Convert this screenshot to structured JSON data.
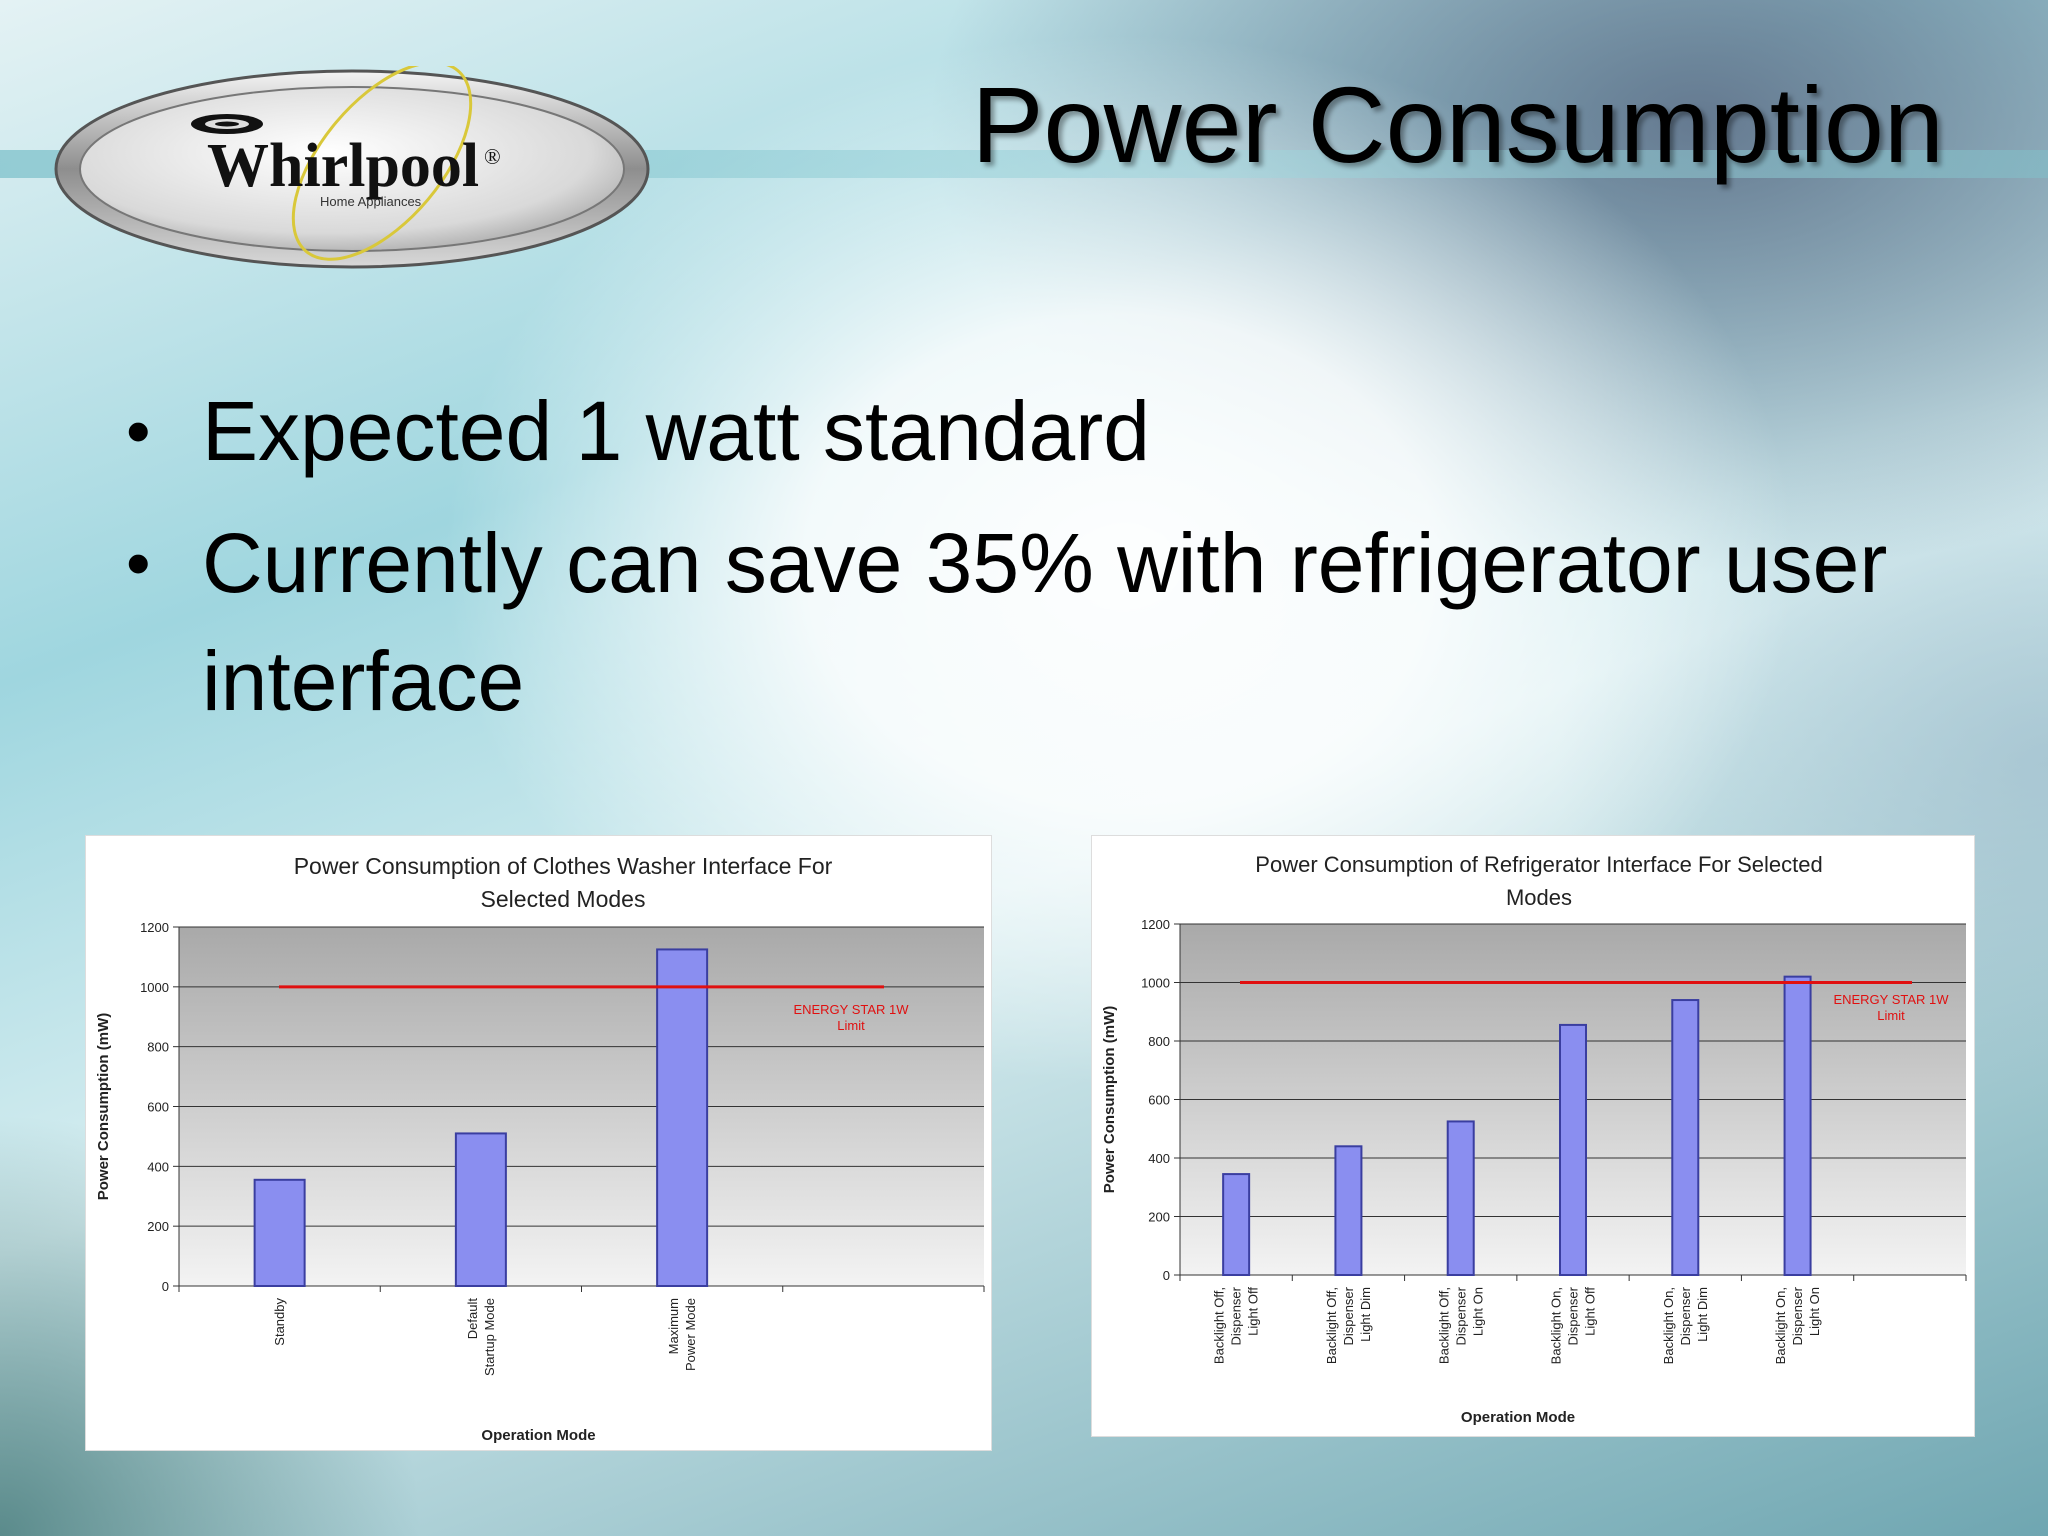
{
  "slide": {
    "title": "Power Consumption",
    "bullets": [
      {
        "text": "Expected  1 watt standard"
      },
      {
        "text": "Currently can save 35% with refrigerator user interface"
      }
    ],
    "bullet_glyph": "•"
  },
  "logo": {
    "brand": "Whirlpool",
    "tagline": "Home Appliances",
    "trademark": "®"
  },
  "colors": {
    "bar_fill": "#8a8ef0",
    "bar_stroke": "#3a3ea0",
    "limit_line": "#e01010",
    "plot_top": "#a9a9a9",
    "plot_bottom": "#f3f3f3"
  },
  "chart_data": [
    {
      "type": "bar",
      "title": "Power Consumption of Clothes Washer Interface For Selected Modes",
      "title_lines": [
        "Power Consumption of Clothes Washer Interface For",
        "Selected Modes"
      ],
      "xlabel": "Operation Mode",
      "ylabel": "Power Consumption (mW)",
      "ylim": [
        0,
        1200
      ],
      "yticks": [
        0,
        200,
        400,
        600,
        800,
        1000,
        1200
      ],
      "grid": true,
      "categories": [
        "Standby",
        "Default Startup Mode",
        "Maximum Power Mode"
      ],
      "category_lines": [
        [
          "Standby"
        ],
        [
          "Default",
          "Startup Mode"
        ],
        [
          "Maximum",
          "Power Mode"
        ]
      ],
      "slots": 4,
      "values": [
        355,
        510,
        1125
      ],
      "reference_line": {
        "value": 1000,
        "label_lines": [
          "ENERGY STAR 1W",
          "Limit"
        ]
      }
    },
    {
      "type": "bar",
      "title": "Power Consumption of Refrigerator Interface For Selected Modes",
      "title_lines": [
        "Power Consumption of Refrigerator Interface For Selected",
        "Modes"
      ],
      "xlabel": "Operation Mode",
      "ylabel": "Power Consumption (mW)",
      "ylim": [
        0,
        1200
      ],
      "yticks": [
        0,
        200,
        400,
        600,
        800,
        1000,
        1200
      ],
      "grid": true,
      "categories": [
        "Backlight Off, Dispenser Light Off",
        "Backlight Off, Dispenser Light Dim",
        "Backlight Off, Dispenser Light On",
        "Backlight On, Dispenser Light Off",
        "Backlight On, Dispenser Light Dim",
        "Backlight On, Dispenser Light On"
      ],
      "category_lines": [
        [
          "Backlight Off,",
          "Dispenser",
          "Light Off"
        ],
        [
          "Backlight Off,",
          "Dispenser",
          "Light Dim"
        ],
        [
          "Backlight Off,",
          "Dispenser",
          "Light On"
        ],
        [
          "Backlight On,",
          "Dispenser",
          "Light Off"
        ],
        [
          "Backlight On,",
          "Dispenser",
          "Light Dim"
        ],
        [
          "Backlight On,",
          "Dispenser",
          "Light On"
        ]
      ],
      "slots": 7,
      "values": [
        345,
        440,
        525,
        855,
        940,
        1020
      ],
      "reference_line": {
        "value": 1000,
        "label_lines": [
          "ENERGY STAR 1W",
          "Limit"
        ]
      }
    }
  ]
}
